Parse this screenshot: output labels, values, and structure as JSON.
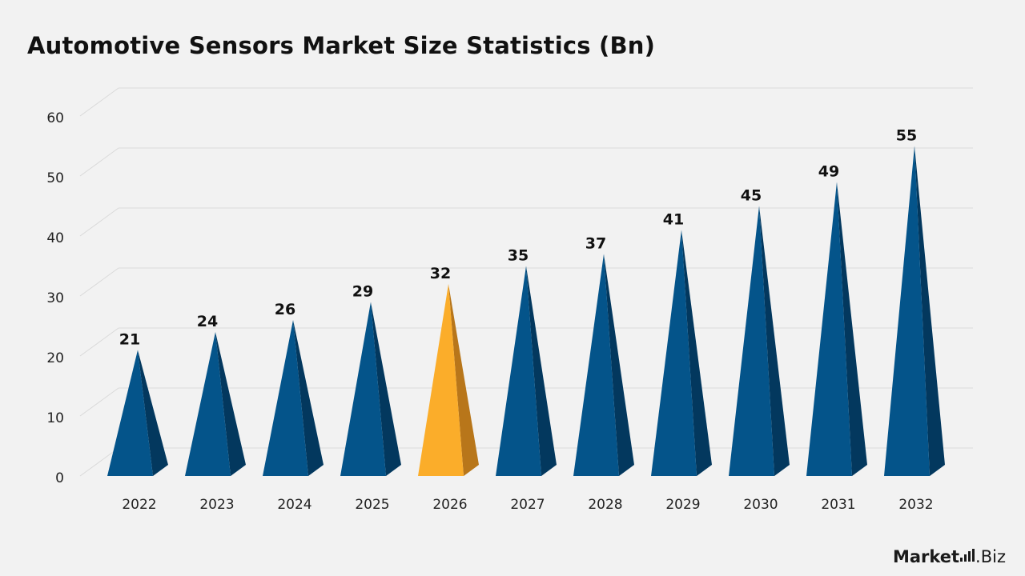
{
  "title": "Automotive Sensors Market Size Statistics (Bn)",
  "logo": {
    "part1": "Market",
    "part2": ".Biz"
  },
  "colors": {
    "bar": "#04548a",
    "bar_shade": "#03385e",
    "highlight": "#fbad2a",
    "highlight_shade": "#b8761a",
    "grid": "#d9d9d9"
  },
  "chart_data": {
    "type": "bar",
    "categories": [
      "2022",
      "2023",
      "2024",
      "2025",
      "2026",
      "2027",
      "2028",
      "2029",
      "2030",
      "2031",
      "2032"
    ],
    "values": [
      21,
      24,
      26,
      29,
      32,
      35,
      37,
      41,
      45,
      49,
      55
    ],
    "highlight_category": "2026",
    "yticks": [
      "0",
      "10",
      "20",
      "30",
      "40",
      "50",
      "60"
    ],
    "ylim": [
      0,
      60
    ],
    "grid": true,
    "xlabel": "",
    "ylabel": ""
  }
}
